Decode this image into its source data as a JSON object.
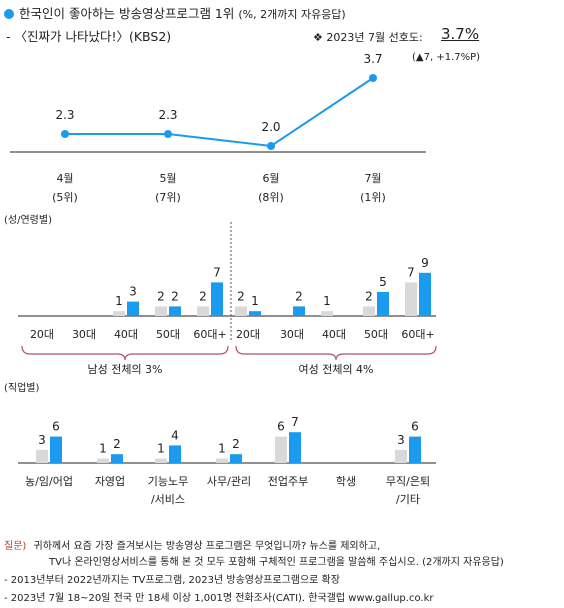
{
  "header": {
    "title_main": "한국인이 좋아하는 방송영상프로그램 1위",
    "title_note": "(%, 2개까지 자유응답)",
    "subtitle": "- 〈진짜가 나타났다!〉(KBS2)",
    "pref_symbol": "❖",
    "pref_label": "2023년 7월 선호도:",
    "pref_value": "3.7%",
    "pref_change": "(▲7, +1.7%P)"
  },
  "trend": {
    "months": [
      "4월",
      "5월",
      "6월",
      "7월"
    ],
    "ranks": [
      "(5위)",
      "(7위)",
      "(8위)",
      "(1위)"
    ],
    "values": [
      2.3,
      2.3,
      2.0,
      3.7
    ],
    "value_labels": [
      "2.3",
      "2.3",
      "2.0",
      "3.7"
    ]
  },
  "gender_age": {
    "section_label": "(성/연령별)",
    "male_label": "남성 전체의 3%",
    "female_label": "여성 전체의 4%",
    "groups": [
      {
        "label": "20대",
        "prev": null,
        "cur": null
      },
      {
        "label": "30대",
        "prev": null,
        "cur": null
      },
      {
        "label": "40대",
        "prev": 1,
        "cur": 3
      },
      {
        "label": "50대",
        "prev": 2,
        "cur": 2
      },
      {
        "label": "60대+",
        "prev": 2,
        "cur": 7
      },
      {
        "label": "20대",
        "prev": 2,
        "cur": 1
      },
      {
        "label": "30대",
        "prev": null,
        "cur": 2
      },
      {
        "label": "40대",
        "prev": 1,
        "cur": null
      },
      {
        "label": "50대",
        "prev": 2,
        "cur": 5
      },
      {
        "label": "60대+",
        "prev": 7,
        "cur": 9
      }
    ]
  },
  "occupation": {
    "section_label": "(직업별)",
    "groups": [
      {
        "label": "농/임/어업",
        "prev": 3,
        "cur": 6
      },
      {
        "label": "자영업",
        "prev": 1,
        "cur": 2
      },
      {
        "label": "기능노무\n/서비스",
        "prev": 1,
        "cur": 4
      },
      {
        "label": "사무/관리",
        "prev": 1,
        "cur": 2
      },
      {
        "label": "전업주부",
        "prev": 6,
        "cur": 7
      },
      {
        "label": "학생",
        "prev": null,
        "cur": null
      },
      {
        "label": "무직/은퇴\n/기타",
        "prev": 3,
        "cur": 6
      }
    ]
  },
  "chart_data": [
    {
      "type": "line",
      "x": [
        "4월",
        "5월",
        "6월",
        "7월"
      ],
      "series": [
        {
          "values": [
            2.3,
            2.3,
            2.0,
            3.7
          ]
        }
      ]
    },
    {
      "type": "bar",
      "categories": [
        "20대",
        "30대",
        "40대",
        "50대",
        "60대+",
        "20대",
        "30대",
        "40대",
        "50대",
        "60대+"
      ],
      "series": [
        {
          "values": [
            null,
            null,
            1,
            2,
            2,
            2,
            null,
            1,
            2,
            7
          ]
        },
        {
          "values": [
            null,
            null,
            3,
            2,
            7,
            1,
            2,
            null,
            5,
            9
          ]
        }
      ]
    },
    {
      "type": "bar",
      "categories": [
        "농/임/어업",
        "자영업",
        "기능노무/서비스",
        "사무/관리",
        "전업주부",
        "학생",
        "무직/은퇴/기타"
      ],
      "series": [
        {
          "values": [
            3,
            1,
            1,
            1,
            6,
            null,
            3
          ]
        },
        {
          "values": [
            6,
            2,
            4,
            2,
            7,
            null,
            6
          ]
        }
      ]
    }
  ],
  "colors": {
    "accent": "#1a9bef",
    "prev_bar": "#d9d9d9",
    "brace": "#b0506a",
    "footer_label": "#c0392b"
  },
  "footer": {
    "q_label": "질문)",
    "q_line1": "귀하께서 요즘 가장 즐겨보시는 방송영상 프로그램은 무엇입니까? 뉴스를 제외하고,",
    "q_line2": "TV나 온라인영상서비스를 통해 본 것 모두 포함해 구체적인 프로그램을 말씀해 주십시오. (2개까지 자유응답)",
    "note1": "- 2013년부터 2022년까지는 TV프로그램, 2023년 방송영상프로그램으로 확장",
    "note2": "- 2023년 7월 18~20일 전국 만 18세 이상 1,001명 전화조사(CATI). 한국갤럽 www.gallup.co.kr"
  }
}
